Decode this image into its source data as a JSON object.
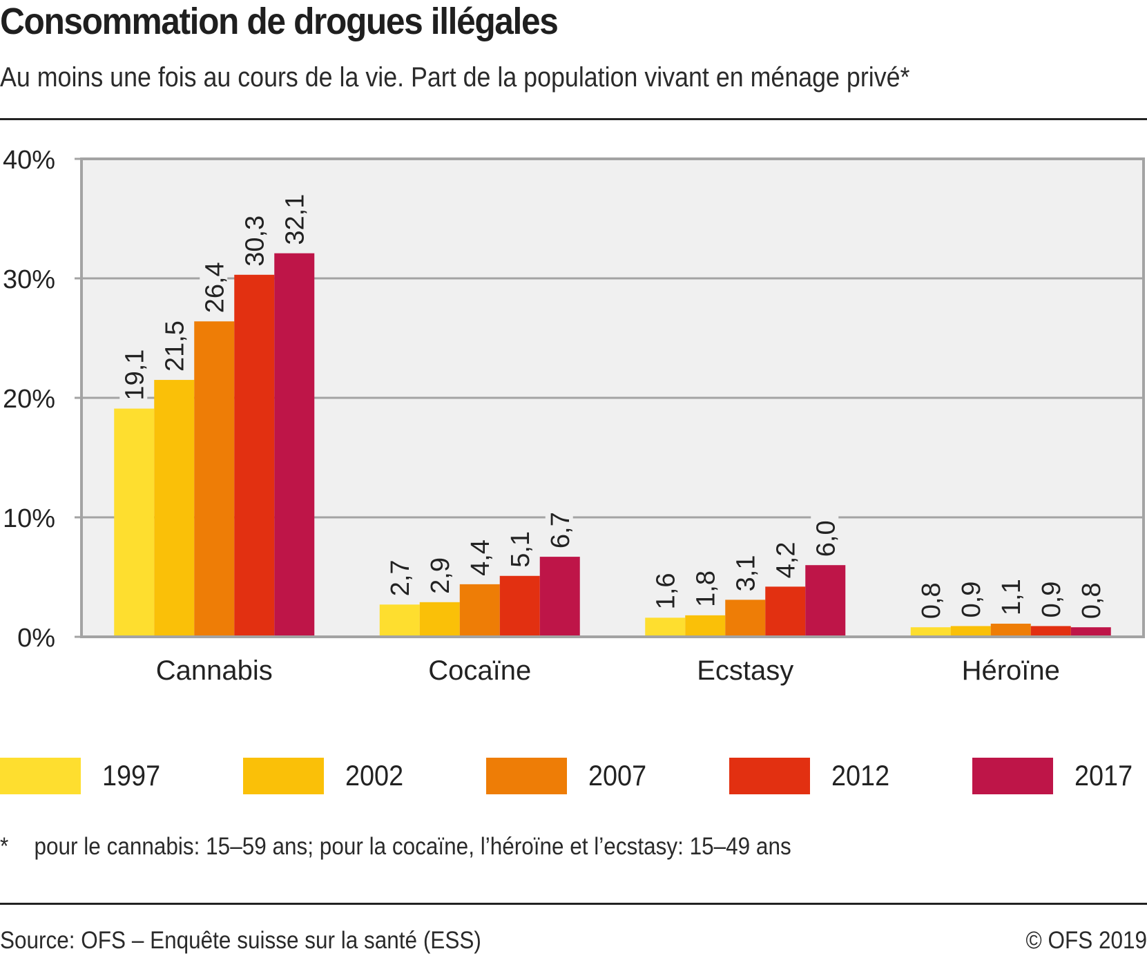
{
  "header": {
    "title": "Consommation de drogues illégales",
    "subtitle": "Au moins une fois au cours de la vie. Part de la population vivant en ménage privé*"
  },
  "chart_data": {
    "type": "bar",
    "title": "Consommation de drogues illégales",
    "subtitle": "Au moins une fois au cours de la vie. Part de la population vivant en ménage privé*",
    "xlabel": "",
    "ylabel": "",
    "ylim": [
      0,
      40
    ],
    "yticks": [
      0,
      10,
      20,
      30,
      40
    ],
    "ytick_labels": [
      "0%",
      "10%",
      "20%",
      "30%",
      "40%"
    ],
    "grid": true,
    "legend_position": "bottom",
    "categories": [
      "Cannabis",
      "Cocaïne",
      "Ecstasy",
      "Héroïne"
    ],
    "series": [
      {
        "name": "1997",
        "color": "#FEDE2F",
        "values": [
          19.1,
          2.7,
          1.6,
          0.8
        ],
        "labels": [
          "19,1",
          "2,7",
          "1,6",
          "0,8"
        ]
      },
      {
        "name": "2002",
        "color": "#FAC008",
        "values": [
          21.5,
          2.9,
          1.8,
          0.9
        ],
        "labels": [
          "21,5",
          "2,9",
          "1,8",
          "0,9"
        ]
      },
      {
        "name": "2007",
        "color": "#EE7D06",
        "values": [
          26.4,
          4.4,
          3.1,
          1.1
        ],
        "labels": [
          "26,4",
          "4,4",
          "3,1",
          "1,1"
        ]
      },
      {
        "name": "2012",
        "color": "#E23011",
        "values": [
          30.3,
          5.1,
          4.2,
          0.9
        ],
        "labels": [
          "30,3",
          "5,1",
          "4,2",
          "0,9"
        ]
      },
      {
        "name": "2017",
        "color": "#BE1548",
        "values": [
          32.1,
          6.7,
          6.0,
          0.8
        ],
        "labels": [
          "32,1",
          "6,7",
          "6,0",
          "0,8"
        ]
      }
    ]
  },
  "legend": {
    "items": [
      {
        "label": "1997",
        "color": "#FEDE2F"
      },
      {
        "label": "2002",
        "color": "#FAC008"
      },
      {
        "label": "2007",
        "color": "#EE7D06"
      },
      {
        "label": "2012",
        "color": "#E23011"
      },
      {
        "label": "2017",
        "color": "#BE1548"
      }
    ]
  },
  "footnote": {
    "mark": "*",
    "text": "pour le cannabis: 15–59 ans; pour la cocaïne, l’héroïne et l’ecstasy: 15–49 ans"
  },
  "footer": {
    "source": "Source: OFS – Enquête suisse sur la santé (ESS)",
    "copyright": "© OFS 2019"
  }
}
